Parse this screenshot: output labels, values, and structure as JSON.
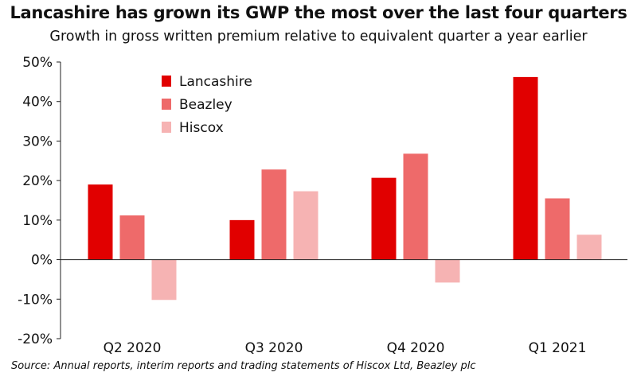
{
  "title": "Lancashire has grown its GWP the most over the last four quarters",
  "subtitle": "Growth in gross written premium relative to equivalent quarter a year earlier",
  "source": "Source: Annual reports, interim reports and trading statements of Hiscox Ltd, Beazley plc",
  "chart_data": {
    "type": "bar",
    "title": "Lancashire has grown its GWP the most over the last four quarters",
    "subtitle": "Growth in gross written premium relative to equivalent quarter a year earlier",
    "xlabel": "",
    "ylabel": "",
    "categories": [
      "Q2 2020",
      "Q3 2020",
      "Q4 2020",
      "Q1 2021"
    ],
    "series": [
      {
        "name": "Lancashire",
        "color": "#e10000",
        "values": [
          19,
          10,
          20.7,
          46.2
        ]
      },
      {
        "name": "Beazley",
        "color": "#ee6a6a",
        "values": [
          11.2,
          22.8,
          26.8,
          15.5
        ]
      },
      {
        "name": "Hiscox",
        "color": "#f6b3b3",
        "values": [
          -10.2,
          17.3,
          -5.8,
          6.3
        ]
      }
    ],
    "ylim": [
      -20,
      50
    ],
    "yticks": [
      -20,
      -10,
      0,
      10,
      20,
      30,
      40,
      50
    ],
    "ytick_labels": [
      "-20%",
      "-10%",
      "0%",
      "10%",
      "20%",
      "30%",
      "40%",
      "50%"
    ],
    "grid": false,
    "legend_position": "top-left"
  }
}
